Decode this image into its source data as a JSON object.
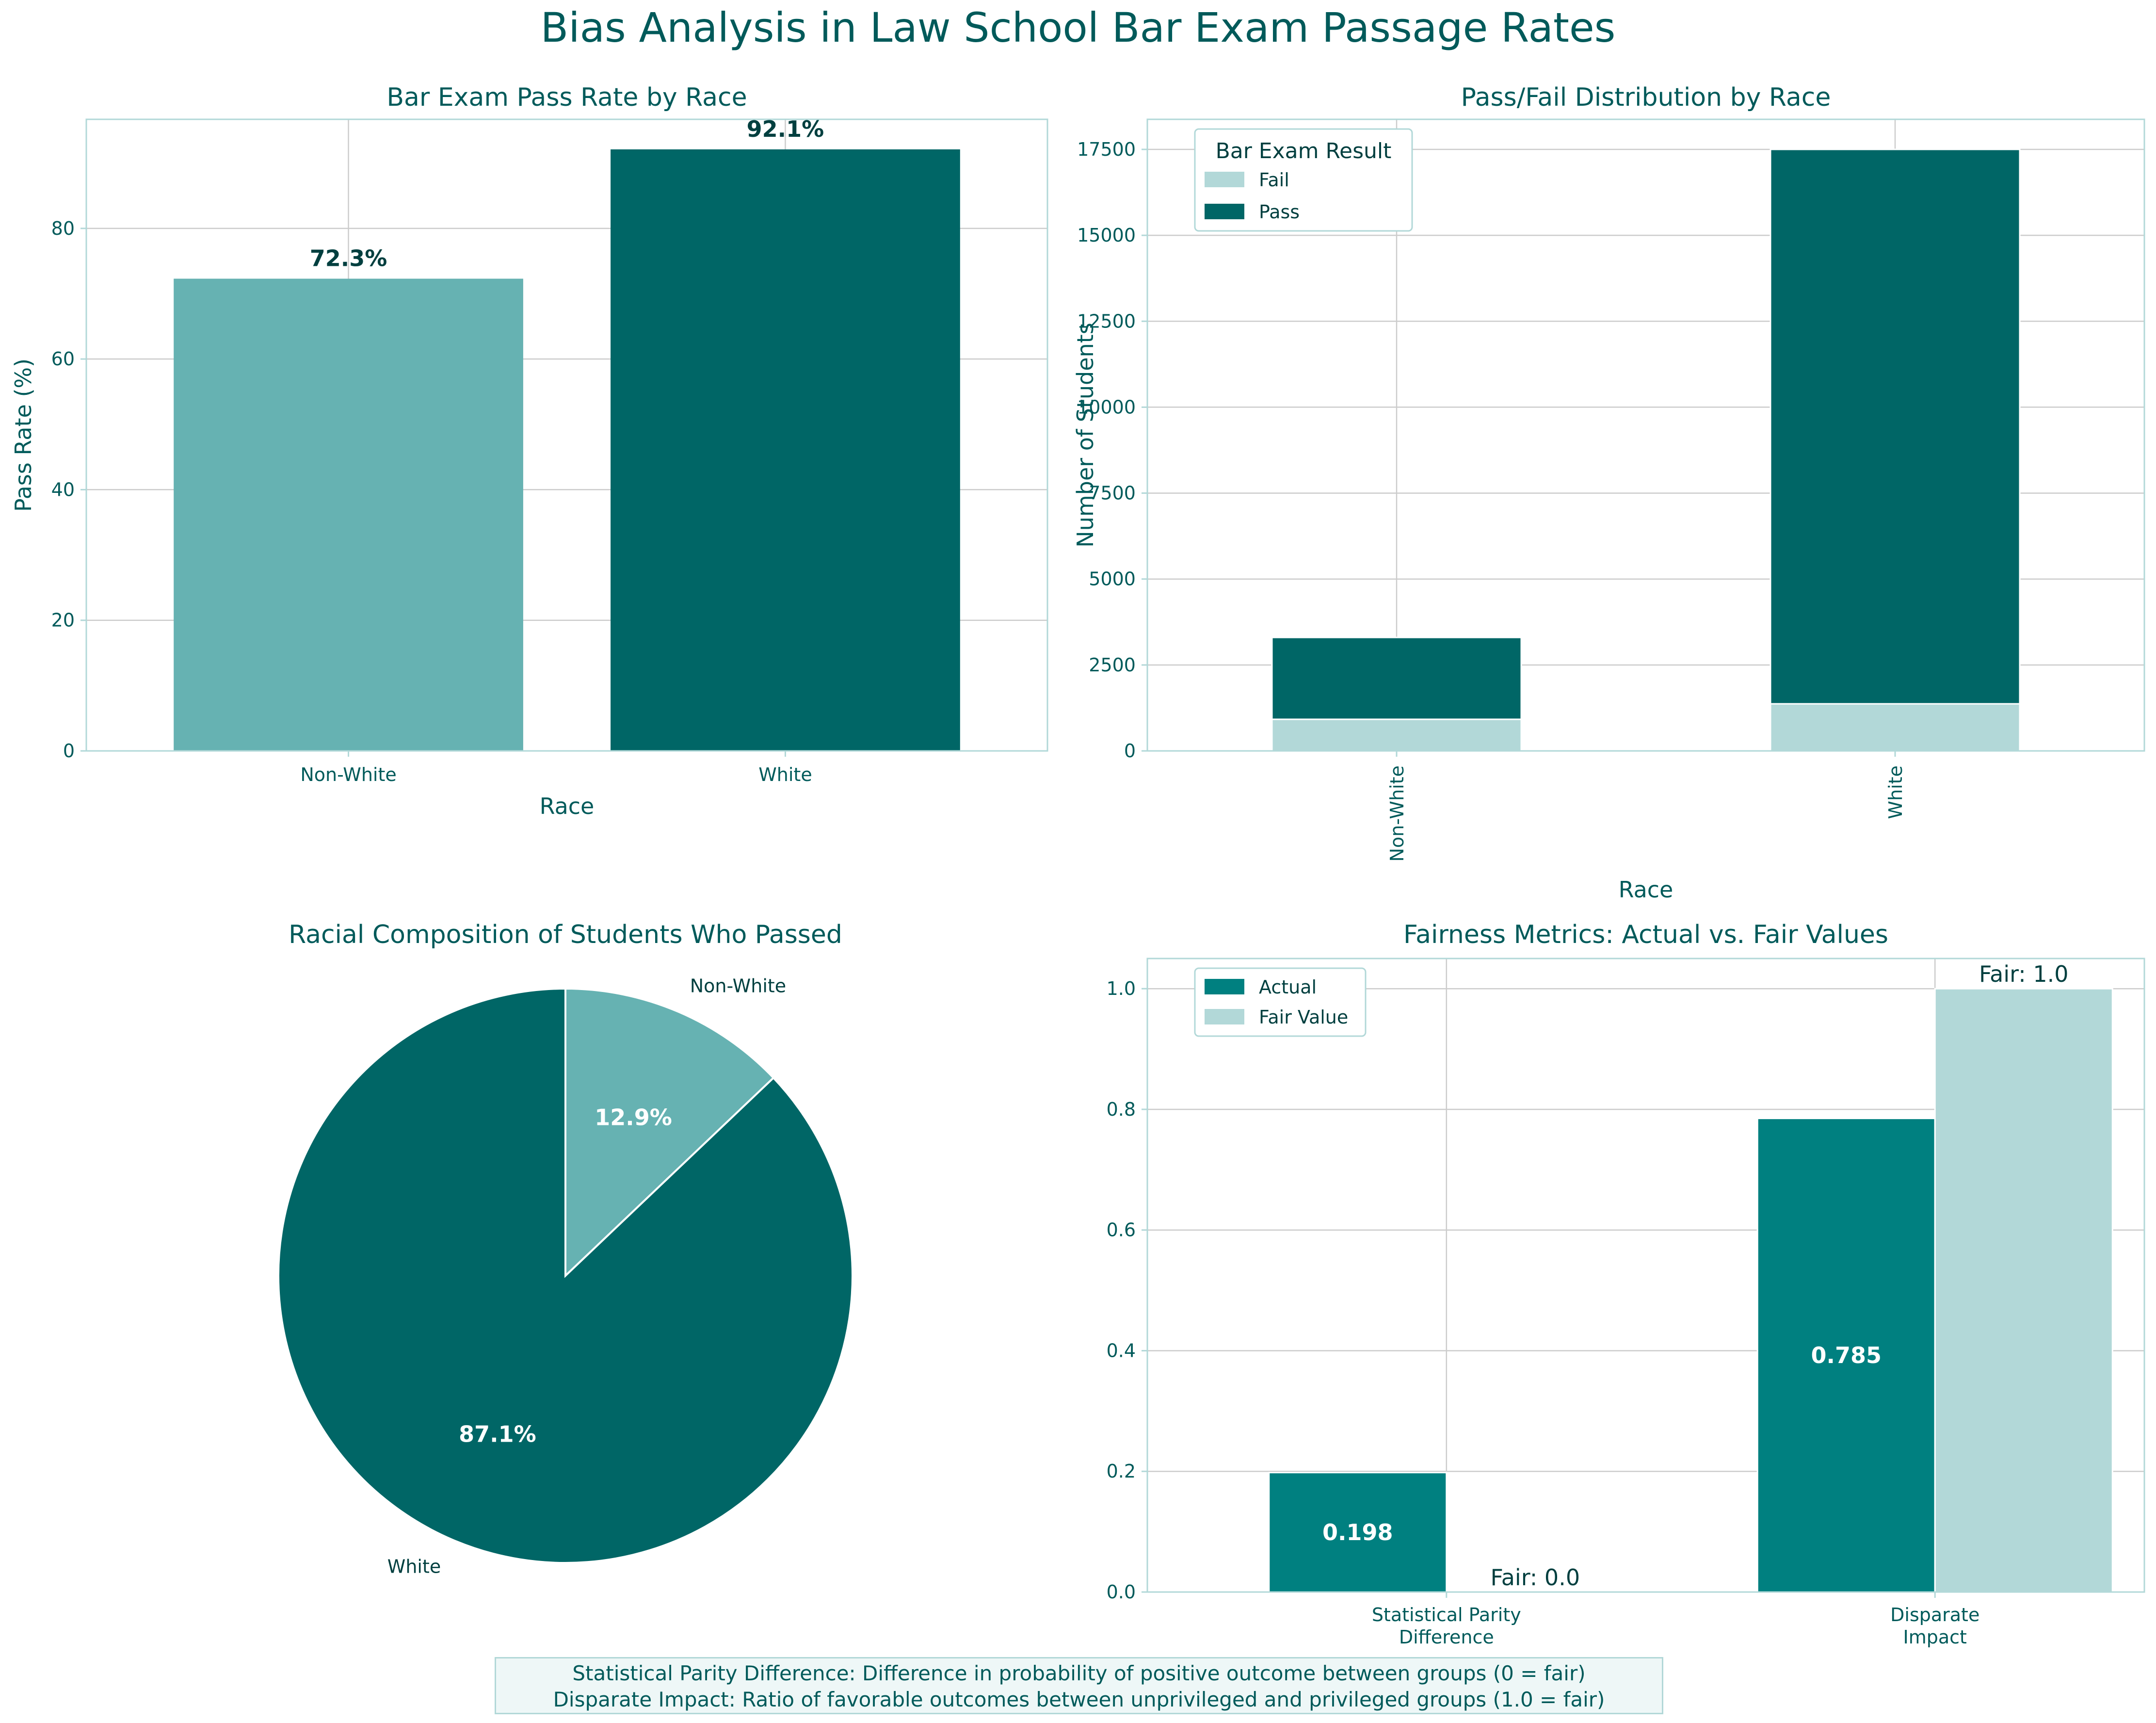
{
  "suptitle": "Bias Analysis in Law School Bar Exam Passage Rates",
  "colors": {
    "teal_dark": "#006666",
    "teal_light": "#66b2b2",
    "teal_pale": "#b2d8d8",
    "teal_mid": "#008080",
    "title_text": "#005a5a",
    "label_text": "#003f3f",
    "grid": "#cccccc",
    "spine": "#b2d8d8"
  },
  "chart_data": [
    {
      "id": "pass-rate",
      "type": "bar",
      "title": "Bar Exam Pass Rate by Race",
      "xlabel": "Race",
      "ylabel": "Pass Rate (%)",
      "categories": [
        "Non-White",
        "White"
      ],
      "values": [
        72.3,
        92.1
      ],
      "value_labels": [
        "72.3%",
        "92.1%"
      ],
      "ylim": [
        0,
        96.7
      ],
      "yticks": [
        0,
        20,
        40,
        60,
        80
      ],
      "ytick_labels": [
        "0",
        "20",
        "40",
        "60",
        "80"
      ],
      "grid": true
    },
    {
      "id": "pass-fail",
      "type": "bar",
      "stacked": true,
      "title": "Pass/Fail Distribution by Race",
      "xlabel": "Race",
      "ylabel": "Number of Students",
      "categories": [
        "Non-White",
        "White"
      ],
      "series": [
        {
          "name": "Fail",
          "values": [
            920,
            1370
          ]
        },
        {
          "name": "Pass",
          "values": [
            2380,
            16130
          ]
        }
      ],
      "legend_title": "Bar Exam Result",
      "legend_position": "top-left",
      "ylim": [
        0,
        18375
      ],
      "yticks": [
        0,
        2500,
        5000,
        7500,
        10000,
        12500,
        15000,
        17500
      ],
      "ytick_labels": [
        "0",
        "2500",
        "5000",
        "7500",
        "10000",
        "12500",
        "15000",
        "17500"
      ],
      "grid": true
    },
    {
      "id": "composition",
      "type": "pie",
      "title": "Racial Composition of Students Who Passed",
      "labels": [
        "Non-White",
        "White"
      ],
      "values": [
        12.9,
        87.1
      ],
      "value_labels": [
        "12.9%",
        "87.1%"
      ],
      "start_angle": 90
    },
    {
      "id": "fairness",
      "type": "bar",
      "title": "Fairness Metrics: Actual vs. Fair Values",
      "categories": [
        [
          "Statistical Parity",
          "Difference"
        ],
        [
          "Disparate",
          "Impact"
        ]
      ],
      "series": [
        {
          "name": "Actual",
          "values": [
            0.198,
            0.785
          ],
          "value_labels": [
            "0.198",
            "0.785"
          ]
        },
        {
          "name": "Fair Value",
          "values": [
            0.0,
            1.0
          ],
          "value_labels": [
            "Fair: 0.0",
            "Fair: 1.0"
          ]
        }
      ],
      "legend_position": "top-left",
      "ylim": [
        0,
        1.05
      ],
      "yticks": [
        0,
        0.2,
        0.4,
        0.6,
        0.8,
        1.0
      ],
      "ytick_labels": [
        "0.0",
        "0.2",
        "0.4",
        "0.6",
        "0.8",
        "1.0"
      ],
      "grid": true
    }
  ],
  "footnote": {
    "line1": "Statistical Parity Difference: Difference in probability of positive outcome between groups (0 = fair)",
    "line2": "Disparate Impact: Ratio of favorable outcomes between unprivileged and privileged groups (1.0 = fair)"
  }
}
